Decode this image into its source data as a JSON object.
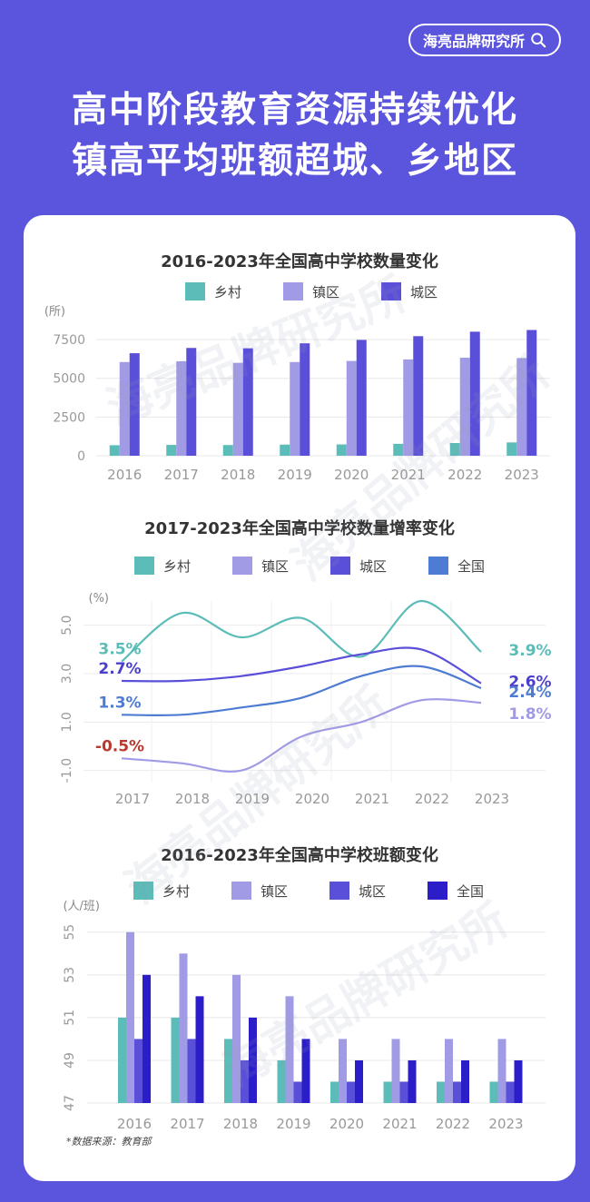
{
  "brand": {
    "name": "海亮品牌研究所",
    "icon": "search-icon"
  },
  "headline": {
    "line1": "高中阶段教育资源持续优化",
    "line2": "镇高平均班额超城、乡地区"
  },
  "source_note": "*数据来源：教育部",
  "watermark": "海亮品牌研究所",
  "colors": {
    "background": "#5b54dd",
    "rural": "#5bbcb8",
    "town": "#a09be4",
    "city": "#5a4fd8",
    "national": "#2b1ec8",
    "national_line": "#4e7cd2",
    "negative_label": "#b83a2e"
  },
  "chart_data": [
    {
      "type": "bar",
      "title": "2016-2023年全国高中学校数量变化",
      "ylabel": "(所)",
      "ylim": [
        0,
        8500
      ],
      "yticks": [
        "0",
        "2500",
        "5000",
        "7500"
      ],
      "categories": [
        "2016",
        "2017",
        "2018",
        "2019",
        "2020",
        "2021",
        "2022",
        "2023"
      ],
      "series": [
        {
          "name": "乡村",
          "values": [
            680,
            700,
            690,
            720,
            730,
            770,
            820,
            860
          ]
        },
        {
          "name": "镇区",
          "values": [
            6050,
            6100,
            6000,
            6050,
            6120,
            6220,
            6330,
            6310
          ]
        },
        {
          "name": "城区",
          "values": [
            6620,
            6960,
            6940,
            7260,
            7480,
            7720,
            8010,
            8120
          ]
        }
      ],
      "grid": true,
      "legend": "top"
    },
    {
      "type": "line",
      "title": "2017-2023年全国高中学校数量增率变化",
      "ylabel": "(%)",
      "ylim": [
        -1.5,
        6.0
      ],
      "yticks": [
        "-1.0",
        "1.0",
        "3.0",
        "5.0"
      ],
      "x": [
        "2017",
        "2018",
        "2019",
        "2020",
        "2021",
        "2022",
        "2023"
      ],
      "series": [
        {
          "name": "乡村",
          "values": [
            3.5,
            5.5,
            4.5,
            5.3,
            3.7,
            6.0,
            3.9
          ],
          "start_label": "3.5%",
          "end_label": "3.9%"
        },
        {
          "name": "镇区",
          "values": [
            -0.5,
            -0.7,
            -1.0,
            0.4,
            1.0,
            1.9,
            1.8
          ],
          "start_label": "-0.5%",
          "end_label": "1.8%"
        },
        {
          "name": "城区",
          "values": [
            2.7,
            2.7,
            2.9,
            3.3,
            3.8,
            4.0,
            2.6
          ],
          "start_label": "2.7%",
          "end_label": "2.6%"
        },
        {
          "name": "全国",
          "values": [
            1.3,
            1.3,
            1.6,
            2.0,
            2.9,
            3.3,
            2.4
          ],
          "start_label": "1.3%",
          "end_label": "2.4%"
        }
      ],
      "grid": true,
      "legend": "top"
    },
    {
      "type": "bar",
      "title": "2016-2023年全国高中学校班额变化",
      "ylabel": "(人/班)",
      "ylim": [
        47,
        55.5
      ],
      "yticks": [
        "47",
        "49",
        "51",
        "53",
        "55"
      ],
      "categories": [
        "2016",
        "2017",
        "2018",
        "2019",
        "2020",
        "2021",
        "2022",
        "2023"
      ],
      "series": [
        {
          "name": "乡村",
          "values": [
            51,
            51,
            50,
            49,
            48,
            48,
            48,
            48
          ]
        },
        {
          "name": "镇区",
          "values": [
            55,
            54,
            53,
            52,
            50,
            50,
            50,
            50
          ]
        },
        {
          "name": "城区",
          "values": [
            50,
            50,
            49,
            48,
            48,
            48,
            48,
            48
          ]
        },
        {
          "name": "全国",
          "values": [
            53,
            52,
            51,
            50,
            49,
            49,
            49,
            49
          ]
        }
      ],
      "grid": true,
      "legend": "top"
    }
  ]
}
